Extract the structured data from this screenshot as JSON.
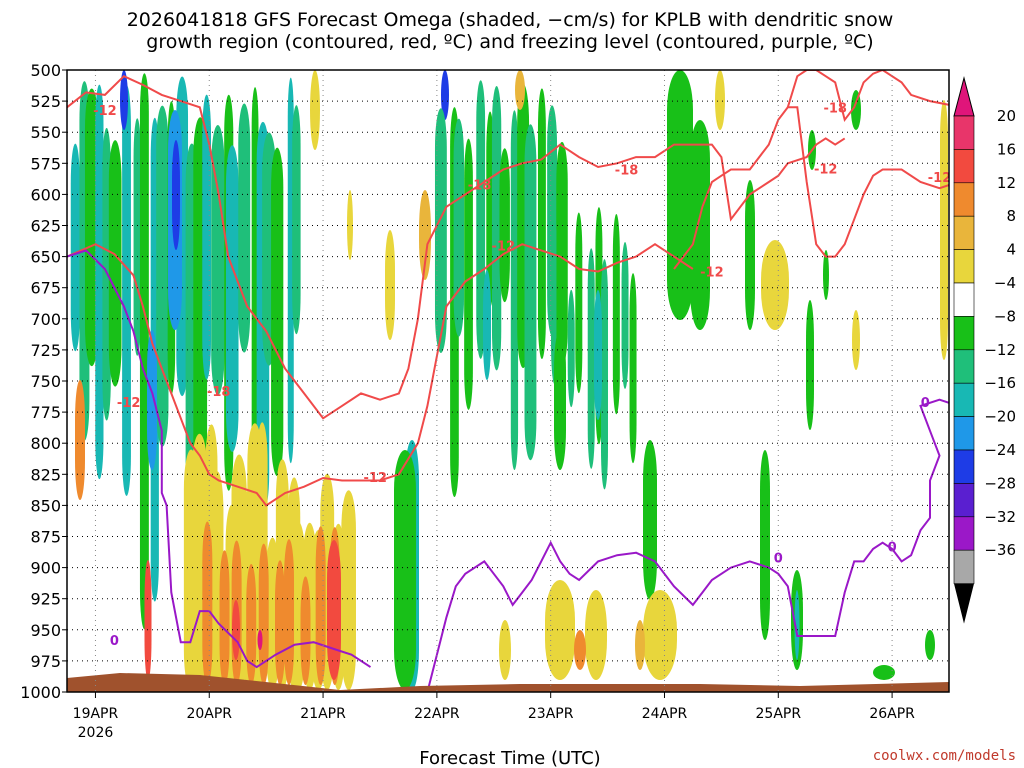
{
  "chart_data": {
    "type": "heatmap",
    "title_lines": [
      "2026041818 GFS Forecast Omega (shaded, −cm/s) for KPLB with dendritic snow",
      "growth region (contoured, red, ºC) and freezing level (contoured, purple, ºC)"
    ],
    "xlabel": "Forecast Time (UTC)",
    "ylabel": "",
    "credit": "coolwx.com/models",
    "y_axis": {
      "range": [
        1000,
        500
      ],
      "ticks": [
        "500",
        "525",
        "550",
        "575",
        "600",
        "625",
        "650",
        "675",
        "700",
        "725",
        "750",
        "775",
        "800",
        "825",
        "850",
        "875",
        "900",
        "925",
        "950",
        "975",
        "1000"
      ]
    },
    "x_axis": {
      "range": [
        "2026-04-18T18",
        "2026-04-26T12"
      ],
      "ticks": [
        {
          "label": "19APR",
          "t": "2026-04-19T00"
        },
        {
          "label": "20APR",
          "t": "2026-04-20T00"
        },
        {
          "label": "21APR",
          "t": "2026-04-21T00"
        },
        {
          "label": "22APR",
          "t": "2026-04-22T00"
        },
        {
          "label": "23APR",
          "t": "2026-04-23T00"
        },
        {
          "label": "24APR",
          "t": "2026-04-24T00"
        },
        {
          "label": "25APR",
          "t": "2026-04-25T00"
        },
        {
          "label": "26APR",
          "t": "2026-04-26T00"
        }
      ],
      "year_label": "2026"
    },
    "grid": true,
    "colorbar": {
      "labels": [
        "20",
        "16",
        "12",
        "8",
        "4",
        "−4",
        "−8",
        "−12",
        "−16",
        "−20",
        "−24",
        "−28",
        "−32",
        "−36"
      ],
      "colors": [
        "#e8356a",
        "#f24a3f",
        "#ef8a2e",
        "#e9b53b",
        "#e8d63c",
        "#ffffff",
        "#18c018",
        "#1fbf7a",
        "#18b8b4",
        "#1f98e8",
        "#1e3ce6",
        "#5a1fd0",
        "#9b18c8",
        "#a8a8a8"
      ],
      "top_color": "#e0157a",
      "bottom_color": "#000000"
    },
    "contours": {
      "dgz_color": "#f04a4a",
      "freezing_color": "#9a18c8",
      "labels": [
        {
          "text": "-12",
          "t": 8,
          "p": 532,
          "kind": "dgz"
        },
        {
          "text": "-18",
          "t": 87,
          "p": 592,
          "kind": "dgz"
        },
        {
          "text": "-12",
          "t": 92,
          "p": 641,
          "kind": "dgz"
        },
        {
          "text": "-18",
          "t": 118,
          "p": 580,
          "kind": "dgz"
        },
        {
          "text": "-12",
          "t": 136,
          "p": 662,
          "kind": "dgz"
        },
        {
          "text": "-18",
          "t": 32,
          "p": 758,
          "kind": "dgz"
        },
        {
          "text": "-12",
          "t": 13,
          "p": 767,
          "kind": "dgz"
        },
        {
          "text": "-12",
          "t": 65,
          "p": 827,
          "kind": "dgz"
        },
        {
          "text": "-18",
          "t": 162,
          "p": 530,
          "kind": "dgz"
        },
        {
          "text": "-12",
          "t": 160,
          "p": 579,
          "kind": "dgz"
        },
        {
          "text": "-18",
          "t": 190,
          "p": 515,
          "kind": "dgz"
        },
        {
          "text": "-12",
          "t": 184,
          "p": 586,
          "kind": "dgz"
        },
        {
          "text": "0",
          "t": 10,
          "p": 958,
          "kind": "frz"
        },
        {
          "text": "0",
          "t": 150,
          "p": 892,
          "kind": "frz"
        },
        {
          "text": "0",
          "t": 174,
          "p": 883,
          "kind": "frz"
        },
        {
          "text": "0",
          "t": 181,
          "p": 767,
          "kind": "frz"
        }
      ]
    },
    "surface_color": "#a0522d"
  }
}
